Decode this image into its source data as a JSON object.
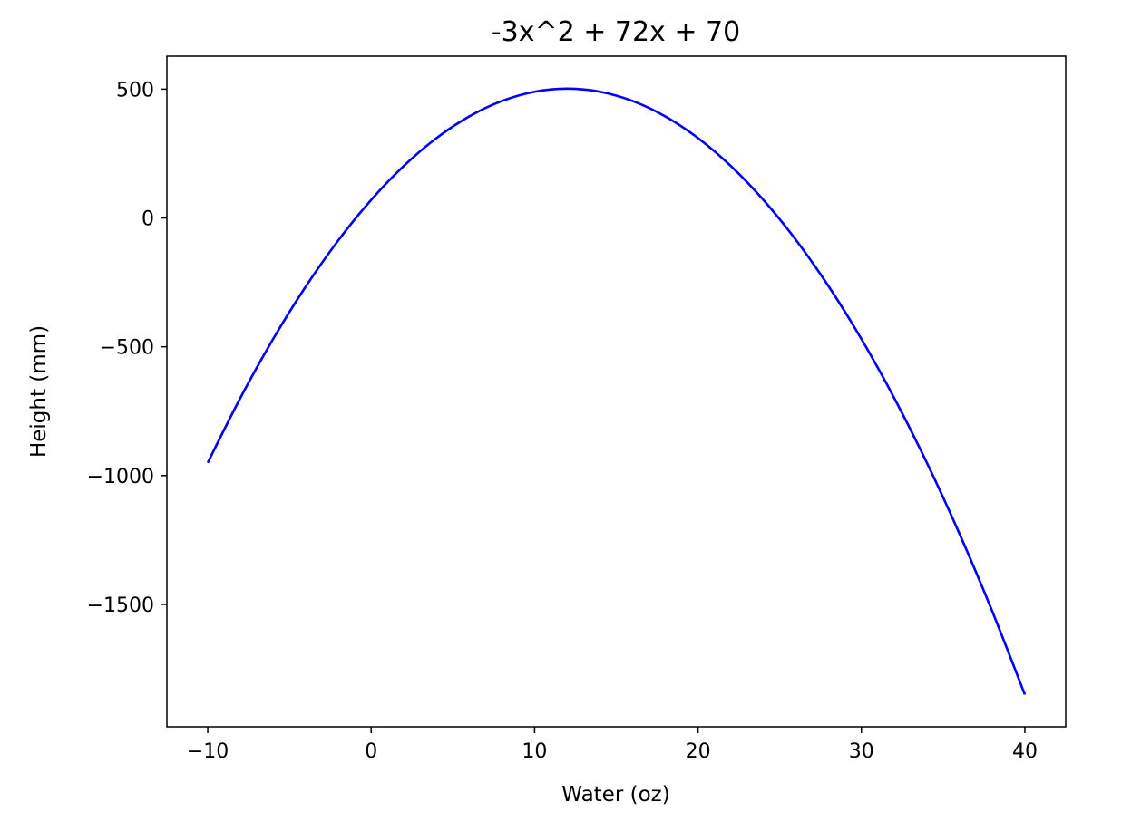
{
  "chart_data": {
    "type": "line",
    "title": "-3x^2 + 72x + 70",
    "xlabel": "Water (oz)",
    "ylabel": "Height (mm)",
    "xlim": [
      -12.5,
      42.5
    ],
    "ylim": [
      -1975,
      628
    ],
    "x_ticks": [
      -10,
      0,
      10,
      20,
      30,
      40
    ],
    "x_tick_labels": [
      "−10",
      "0",
      "10",
      "20",
      "30",
      "40"
    ],
    "y_ticks": [
      500,
      0,
      -500,
      -1000,
      -1500
    ],
    "y_tick_labels": [
      "500",
      "0",
      "−500",
      "−1000",
      "−1500"
    ],
    "grid": false,
    "series": [
      {
        "color": "#0000ff",
        "x": [
          -10,
          -8,
          -6,
          -4,
          -2,
          0,
          2,
          4,
          6,
          8,
          10,
          12,
          14,
          16,
          18,
          20,
          22,
          24,
          26,
          28,
          30,
          32,
          34,
          36,
          38,
          40
        ],
        "y": [
          -950,
          -698,
          -470,
          -266,
          -86,
          70,
          202,
          310,
          394,
          454,
          490,
          502,
          490,
          454,
          394,
          310,
          202,
          70,
          -86,
          -266,
          -470,
          -698,
          -950,
          -1226,
          -1526,
          -1850
        ]
      }
    ]
  }
}
